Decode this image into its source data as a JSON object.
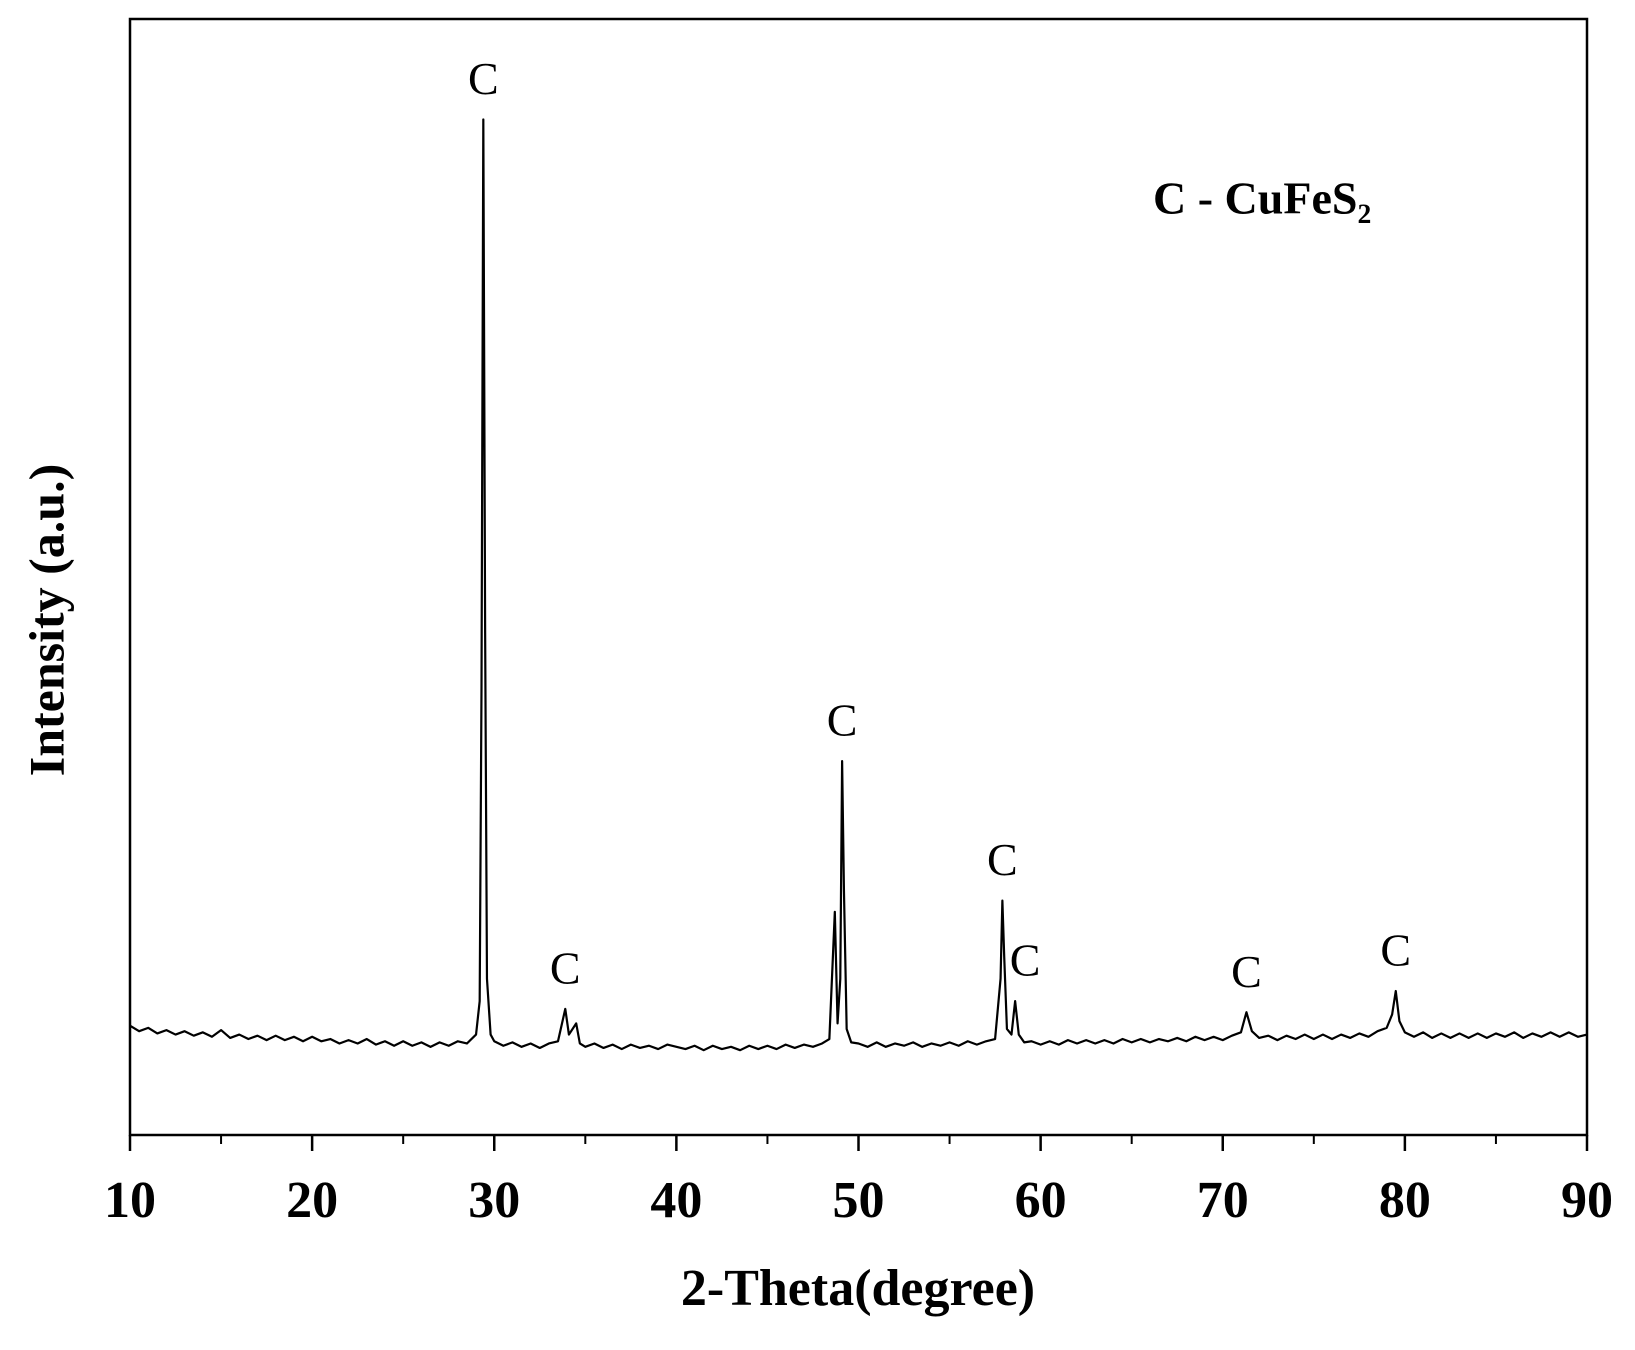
{
  "chart_data": {
    "type": "line",
    "xlabel": "2-Theta(degree)",
    "ylabel": "Intensity (a.u.)",
    "legend_text": "C - CuFeS₂",
    "color": "#000000",
    "xlim": [
      10,
      90
    ],
    "xticks": [
      10,
      20,
      30,
      40,
      50,
      60,
      70,
      80,
      90
    ],
    "xminorticks": [
      15,
      25,
      35,
      45,
      55,
      65,
      75,
      85
    ],
    "ylim": [
      0,
      100
    ],
    "annotations": [
      {
        "text": "C",
        "x": 29.4
      },
      {
        "text": "C",
        "x": 33.9
      },
      {
        "text": "C",
        "x": 49.1
      },
      {
        "text": "C",
        "x": 57.9
      },
      {
        "text": "C",
        "x": 58.6
      },
      {
        "text": "C",
        "x": 71.3
      },
      {
        "text": "C",
        "x": 79.5
      }
    ],
    "x": [
      10,
      10.5,
      11,
      11.5,
      12,
      12.5,
      13,
      13.5,
      14,
      14.5,
      15,
      15.5,
      16,
      16.5,
      17,
      17.5,
      18,
      18.5,
      19,
      19.5,
      20,
      20.5,
      21,
      21.5,
      22,
      22.5,
      23,
      23.5,
      24,
      24.5,
      25,
      25.5,
      26,
      26.5,
      27,
      27.5,
      28,
      28.5,
      29,
      29.2,
      29.3,
      29.4,
      29.5,
      29.6,
      29.8,
      30,
      30.5,
      31,
      31.5,
      32,
      32.5,
      33,
      33.5,
      33.9,
      34.1,
      34.5,
      34.7,
      35,
      35.5,
      36,
      36.5,
      37,
      37.5,
      38,
      38.5,
      39,
      39.5,
      40,
      40.5,
      41,
      41.5,
      42,
      42.5,
      43,
      43.5,
      44,
      44.5,
      45,
      45.5,
      46,
      46.5,
      47,
      47.5,
      48,
      48.4,
      48.7,
      48.85,
      49.0,
      49.1,
      49.2,
      49.35,
      49.6,
      50,
      50.5,
      51,
      51.5,
      52,
      52.5,
      53,
      53.5,
      54,
      54.5,
      55,
      55.5,
      56,
      56.5,
      57,
      57.5,
      57.8,
      57.9,
      58.0,
      58.15,
      58.4,
      58.6,
      58.8,
      59.1,
      59.5,
      60,
      60.5,
      61,
      61.5,
      62,
      62.5,
      63,
      63.5,
      64,
      64.5,
      65,
      65.5,
      66,
      66.5,
      67,
      67.5,
      68,
      68.5,
      69,
      69.5,
      70,
      70.5,
      71,
      71.3,
      71.6,
      72,
      72.5,
      73,
      73.5,
      74,
      74.5,
      75,
      75.5,
      76,
      76.5,
      77,
      77.5,
      78,
      78.5,
      79,
      79.3,
      79.5,
      79.7,
      80,
      80.5,
      81,
      81.5,
      82,
      82.5,
      83,
      83.5,
      84,
      84.5,
      85,
      85.5,
      86,
      86.5,
      87,
      87.5,
      88,
      88.5,
      89,
      89.5,
      90
    ],
    "values": [
      9.8,
      9.3,
      9.6,
      9.1,
      9.4,
      9.0,
      9.3,
      8.9,
      9.2,
      8.8,
      9.4,
      8.7,
      9.0,
      8.6,
      8.9,
      8.5,
      8.9,
      8.5,
      8.8,
      8.4,
      8.8,
      8.4,
      8.6,
      8.2,
      8.5,
      8.2,
      8.6,
      8.1,
      8.4,
      8.0,
      8.4,
      8.0,
      8.3,
      7.9,
      8.3,
      8.0,
      8.4,
      8.2,
      9.0,
      12,
      40,
      91,
      45,
      14,
      9.0,
      8.4,
      8.0,
      8.3,
      7.9,
      8.2,
      7.8,
      8.2,
      8.4,
      11.3,
      9.0,
      10.0,
      8.2,
      7.9,
      8.2,
      7.8,
      8.1,
      7.7,
      8.1,
      7.8,
      8.0,
      7.7,
      8.1,
      7.9,
      7.7,
      8.0,
      7.6,
      8.0,
      7.7,
      7.9,
      7.6,
      8.0,
      7.7,
      8.0,
      7.7,
      8.1,
      7.8,
      8.1,
      7.9,
      8.2,
      8.6,
      20,
      10,
      14,
      33.5,
      22,
      9.5,
      8.3,
      8.2,
      7.9,
      8.3,
      7.9,
      8.2,
      8.0,
      8.3,
      7.9,
      8.2,
      8.0,
      8.3,
      8.0,
      8.4,
      8.1,
      8.4,
      8.6,
      14,
      21,
      16,
      9.5,
      9.0,
      12,
      9.0,
      8.3,
      8.4,
      8.1,
      8.4,
      8.1,
      8.5,
      8.2,
      8.5,
      8.2,
      8.5,
      8.2,
      8.6,
      8.3,
      8.6,
      8.3,
      8.6,
      8.4,
      8.7,
      8.4,
      8.8,
      8.5,
      8.8,
      8.5,
      8.9,
      9.2,
      11,
      9.3,
      8.7,
      8.9,
      8.5,
      8.9,
      8.6,
      9.0,
      8.6,
      9.0,
      8.6,
      9.0,
      8.7,
      9.1,
      8.8,
      9.3,
      9.6,
      10.8,
      12.9,
      10.2,
      9.2,
      8.8,
      9.2,
      8.7,
      9.1,
      8.7,
      9.1,
      8.7,
      9.1,
      8.7,
      9.1,
      8.8,
      9.2,
      8.7,
      9.1,
      8.8,
      9.2,
      8.8,
      9.2,
      8.8,
      9.0
    ]
  }
}
